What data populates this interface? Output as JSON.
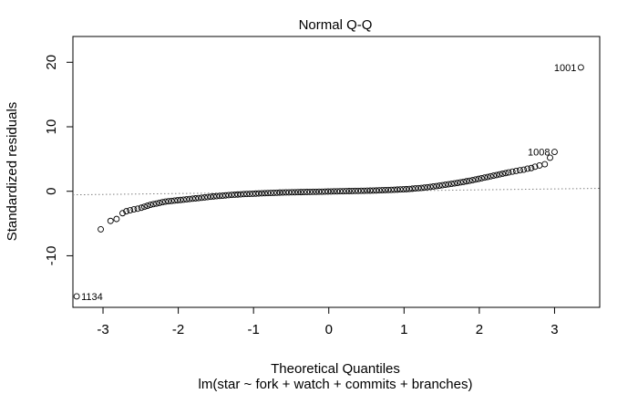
{
  "chart_data": {
    "type": "scatter",
    "title": "Normal Q-Q",
    "xlabel": "Theoretical Quantiles",
    "ylabel": "Standardized residuals",
    "subtitle": "lm(star ~ fork + watch + commits + branches)",
    "xlim": [
      -3.4,
      3.6
    ],
    "ylim": [
      -18,
      24
    ],
    "x_ticks": [
      -3,
      -2,
      -1,
      0,
      1,
      2,
      3
    ],
    "x_tick_labels": [
      "-3",
      "-2",
      "-1",
      "0",
      "1",
      "2",
      "3"
    ],
    "y_ticks": [
      -10,
      0,
      10,
      20
    ],
    "y_tick_labels": [
      "-10",
      "0",
      "10",
      "20"
    ],
    "reference_line": {
      "x": [
        -3.4,
        3.6
      ],
      "y": [
        -0.55,
        0.45
      ],
      "style": "dotted",
      "color": "#808080"
    },
    "labeled_points": [
      {
        "label": "1134",
        "x": -3.35,
        "y": -16.3
      },
      {
        "label": "1008",
        "x": 3.0,
        "y": 6.1
      },
      {
        "label": "1001",
        "x": 3.35,
        "y": 19.2
      }
    ],
    "points": [
      [
        -3.35,
        -16.3
      ],
      [
        -3.03,
        -5.9
      ],
      [
        -2.9,
        -4.6
      ],
      [
        -2.82,
        -4.3
      ],
      [
        -2.74,
        -3.4
      ],
      [
        -2.69,
        -3.1
      ],
      [
        -2.64,
        -2.95
      ],
      [
        -2.59,
        -2.8
      ],
      [
        -2.54,
        -2.7
      ],
      [
        -2.49,
        -2.55
      ],
      [
        -2.45,
        -2.4
      ],
      [
        -2.41,
        -2.25
      ],
      [
        -2.37,
        -2.1
      ],
      [
        -2.33,
        -2.0
      ],
      [
        -2.29,
        -1.9
      ],
      [
        -2.25,
        -1.8
      ],
      [
        -2.21,
        -1.7
      ],
      [
        -2.17,
        -1.6
      ],
      [
        -2.13,
        -1.55
      ],
      [
        -2.09,
        -1.5
      ],
      [
        -2.05,
        -1.45
      ],
      [
        -2.01,
        -1.4
      ],
      [
        -1.97,
        -1.35
      ],
      [
        -1.93,
        -1.3
      ],
      [
        -1.89,
        -1.25
      ],
      [
        -1.85,
        -1.2
      ],
      [
        -1.81,
        -1.15
      ],
      [
        -1.77,
        -1.1
      ],
      [
        -1.73,
        -1.05
      ],
      [
        -1.69,
        -1.0
      ],
      [
        -1.65,
        -0.95
      ],
      [
        -1.61,
        -0.9
      ],
      [
        -1.57,
        -0.85
      ],
      [
        -1.53,
        -0.8
      ],
      [
        -1.49,
        -0.75
      ],
      [
        -1.45,
        -0.72
      ],
      [
        -1.41,
        -0.68
      ],
      [
        -1.37,
        -0.64
      ],
      [
        -1.33,
        -0.6
      ],
      [
        -1.29,
        -0.56
      ],
      [
        -1.25,
        -0.53
      ],
      [
        -1.21,
        -0.5
      ],
      [
        -1.17,
        -0.47
      ],
      [
        -1.13,
        -0.44
      ],
      [
        -1.09,
        -0.42
      ],
      [
        -1.05,
        -0.4
      ],
      [
        -1.01,
        -0.38
      ],
      [
        -0.97,
        -0.36
      ],
      [
        -0.93,
        -0.34
      ],
      [
        -0.89,
        -0.32
      ],
      [
        -0.85,
        -0.3
      ],
      [
        -0.81,
        -0.28
      ],
      [
        -0.77,
        -0.26
      ],
      [
        -0.73,
        -0.24
      ],
      [
        -0.69,
        -0.22
      ],
      [
        -0.65,
        -0.2
      ],
      [
        -0.61,
        -0.19
      ],
      [
        -0.57,
        -0.18
      ],
      [
        -0.53,
        -0.17
      ],
      [
        -0.49,
        -0.16
      ],
      [
        -0.45,
        -0.15
      ],
      [
        -0.41,
        -0.14
      ],
      [
        -0.37,
        -0.13
      ],
      [
        -0.33,
        -0.12
      ],
      [
        -0.29,
        -0.11
      ],
      [
        -0.25,
        -0.1
      ],
      [
        -0.21,
        -0.09
      ],
      [
        -0.17,
        -0.08
      ],
      [
        -0.13,
        -0.07
      ],
      [
        -0.09,
        -0.06
      ],
      [
        -0.05,
        -0.05
      ],
      [
        -0.01,
        -0.04
      ],
      [
        0.03,
        -0.03
      ],
      [
        0.07,
        -0.02
      ],
      [
        0.11,
        -0.01
      ],
      [
        0.15,
        0.0
      ],
      [
        0.19,
        0.01
      ],
      [
        0.23,
        0.02
      ],
      [
        0.27,
        0.03
      ],
      [
        0.31,
        0.04
      ],
      [
        0.35,
        0.05
      ],
      [
        0.39,
        0.06
      ],
      [
        0.43,
        0.07
      ],
      [
        0.47,
        0.08
      ],
      [
        0.51,
        0.09
      ],
      [
        0.55,
        0.1
      ],
      [
        0.59,
        0.11
      ],
      [
        0.63,
        0.12
      ],
      [
        0.67,
        0.14
      ],
      [
        0.71,
        0.16
      ],
      [
        0.75,
        0.18
      ],
      [
        0.79,
        0.2
      ],
      [
        0.83,
        0.22
      ],
      [
        0.87,
        0.24
      ],
      [
        0.91,
        0.26
      ],
      [
        0.95,
        0.28
      ],
      [
        0.99,
        0.3
      ],
      [
        1.03,
        0.33
      ],
      [
        1.07,
        0.36
      ],
      [
        1.11,
        0.4
      ],
      [
        1.15,
        0.44
      ],
      [
        1.19,
        0.48
      ],
      [
        1.23,
        0.52
      ],
      [
        1.27,
        0.57
      ],
      [
        1.31,
        0.62
      ],
      [
        1.35,
        0.68
      ],
      [
        1.39,
        0.74
      ],
      [
        1.43,
        0.8
      ],
      [
        1.47,
        0.87
      ],
      [
        1.51,
        0.94
      ],
      [
        1.55,
        1.01
      ],
      [
        1.59,
        1.08
      ],
      [
        1.63,
        1.15
      ],
      [
        1.67,
        1.23
      ],
      [
        1.71,
        1.3
      ],
      [
        1.75,
        1.38
      ],
      [
        1.79,
        1.46
      ],
      [
        1.83,
        1.55
      ],
      [
        1.87,
        1.63
      ],
      [
        1.91,
        1.72
      ],
      [
        1.95,
        1.82
      ],
      [
        1.99,
        1.92
      ],
      [
        2.03,
        2.02
      ],
      [
        2.07,
        2.12
      ],
      [
        2.11,
        2.22
      ],
      [
        2.15,
        2.32
      ],
      [
        2.19,
        2.42
      ],
      [
        2.23,
        2.52
      ],
      [
        2.27,
        2.62
      ],
      [
        2.31,
        2.72
      ],
      [
        2.35,
        2.82
      ],
      [
        2.39,
        2.92
      ],
      [
        2.44,
        3.05
      ],
      [
        2.49,
        3.15
      ],
      [
        2.54,
        3.25
      ],
      [
        2.59,
        3.35
      ],
      [
        2.64,
        3.5
      ],
      [
        2.69,
        3.6
      ],
      [
        2.74,
        3.8
      ],
      [
        2.8,
        4.0
      ],
      [
        2.87,
        4.2
      ],
      [
        2.94,
        5.2
      ],
      [
        3.0,
        6.1
      ],
      [
        3.35,
        19.2
      ]
    ]
  }
}
